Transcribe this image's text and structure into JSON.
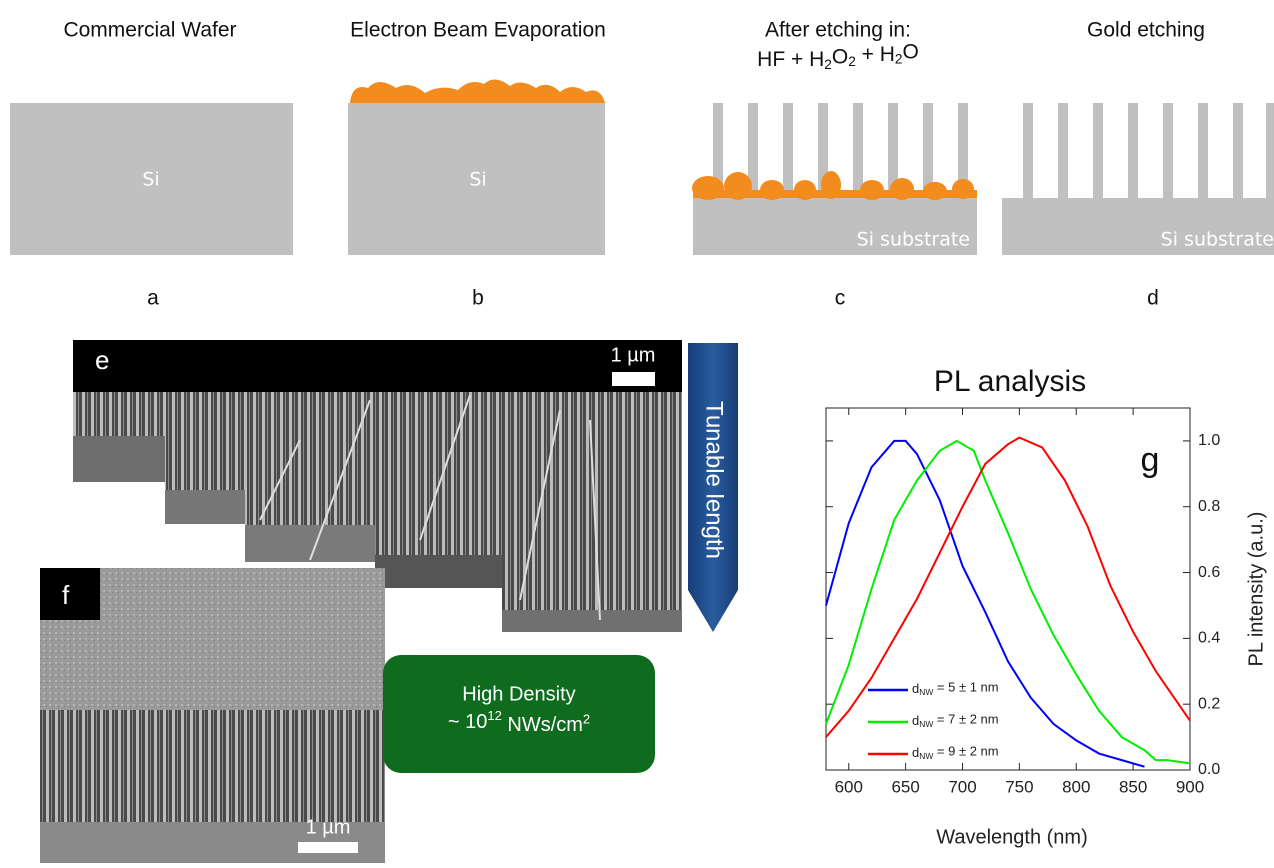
{
  "panels": [
    {
      "title": "Commercial Wafer",
      "label": "Si",
      "letter": "a"
    },
    {
      "title": "Electron Beam Evaporation",
      "label": "Si",
      "letter": "b"
    },
    {
      "title": "After etching in:",
      "formula": [
        {
          "text": "HF + H"
        },
        {
          "text": "2",
          "sub": true
        },
        {
          "text": "O"
        },
        {
          "text": "2",
          "sub": true
        },
        {
          "text": " + H"
        },
        {
          "text": "2",
          "sub": true
        },
        {
          "text": "O"
        }
      ],
      "label": "Si substrate",
      "letter": "c"
    },
    {
      "title": "Gold etching",
      "label": "Si substrate",
      "letter": "d"
    }
  ],
  "sem_e": {
    "letter": "e",
    "scale": "1 µm",
    "arrow": "Tunable length"
  },
  "sem_f": {
    "letter": "f",
    "scale": "1 µm"
  },
  "density": {
    "line1": "High Density",
    "line2": [
      {
        "text": "~ 10"
      },
      {
        "text": "12",
        "sup": true
      },
      {
        "text": " NWs/cm"
      },
      {
        "text": "2",
        "sup": true
      }
    ]
  },
  "chart_data": {
    "type": "line",
    "title": "PL analysis",
    "letter": "g",
    "x_label": "Wavelength (nm)",
    "y_label": "PL intensity (a.u.)",
    "xlim": [
      580,
      900
    ],
    "xticks": [
      600,
      650,
      700,
      750,
      800,
      850,
      900
    ],
    "ylim": [
      0,
      1.1
    ],
    "yticks": [
      {
        "value": 0,
        "label": "0.0"
      },
      0.2,
      0.4,
      0.6,
      0.8,
      {
        "value": 1,
        "label": "1.0"
      }
    ],
    "series": [
      {
        "name": [
          {
            "text": "d"
          },
          {
            "text": "NW",
            "sub": true
          },
          {
            "text": " = 5 ± 1 nm"
          }
        ],
        "color": "#0000ff",
        "x": [
          580,
          600,
          620,
          640,
          650,
          660,
          680,
          700,
          720,
          740,
          760,
          780,
          800,
          820,
          840,
          860
        ],
        "values": [
          0.5,
          0.75,
          0.92,
          1.0,
          1.0,
          0.96,
          0.82,
          0.62,
          0.48,
          0.33,
          0.22,
          0.14,
          0.09,
          0.05,
          0.03,
          0.01
        ]
      },
      {
        "name": [
          {
            "text": "d"
          },
          {
            "text": "NW",
            "sub": true
          },
          {
            "text": " = 7 ± 2 nm"
          }
        ],
        "color": "#00ee00",
        "x": [
          580,
          600,
          620,
          640,
          660,
          680,
          695,
          710,
          720,
          740,
          760,
          780,
          800,
          820,
          840,
          860,
          870,
          880,
          900
        ],
        "values": [
          0.14,
          0.32,
          0.55,
          0.76,
          0.88,
          0.97,
          1.0,
          0.97,
          0.88,
          0.72,
          0.55,
          0.41,
          0.29,
          0.18,
          0.1,
          0.06,
          0.03,
          0.03,
          0.02
        ]
      },
      {
        "name": [
          {
            "text": "d"
          },
          {
            "text": "NW",
            "sub": true
          },
          {
            "text": " = 9 ± 2 nm"
          }
        ],
        "color": "#ff0000",
        "x": [
          580,
          600,
          620,
          640,
          660,
          680,
          700,
          720,
          740,
          750,
          770,
          790,
          810,
          830,
          850,
          870,
          890,
          900
        ],
        "values": [
          0.1,
          0.18,
          0.28,
          0.4,
          0.52,
          0.66,
          0.8,
          0.93,
          0.99,
          1.01,
          0.98,
          0.88,
          0.74,
          0.56,
          0.42,
          0.3,
          0.2,
          0.15
        ]
      }
    ]
  }
}
